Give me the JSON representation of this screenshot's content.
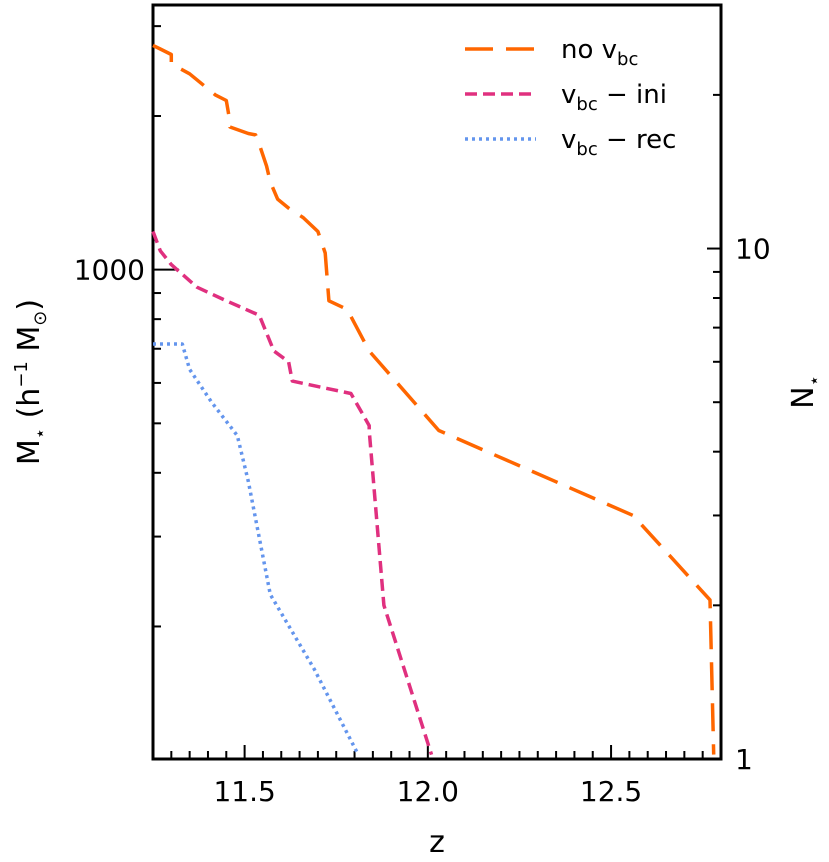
{
  "chart_data": {
    "type": "line",
    "xlabel": "z",
    "ylabel": {
      "base": "M",
      "sub": "⋆",
      "unit_open": " (h",
      "sup": "−1",
      "unit_mid": " M",
      "unit_sub": "⊙",
      "unit_close": ")"
    },
    "ylabel_right": {
      "base": "N",
      "sub": "⋆"
    },
    "xlim": [
      11.25,
      12.8
    ],
    "ylim_right": [
      1,
      30
    ],
    "left_axis_scale_factor": 110,
    "x_ticks": [
      11.5,
      12.0,
      12.5
    ],
    "x_tick_labels": [
      "11.5",
      "12.0",
      "12.5"
    ],
    "left_tick_label": "1000",
    "right_ticks": [
      1,
      10
    ],
    "right_tick_labels": [
      "1",
      "10"
    ],
    "legend": [
      {
        "id": "novbc",
        "parts": [
          "no v",
          "bc",
          ""
        ],
        "color": "#ff6600",
        "dash": "28,13"
      },
      {
        "id": "ini",
        "parts": [
          "v",
          "bc",
          " − ini"
        ],
        "color": "#e0307f",
        "dash": "12,6"
      },
      {
        "id": "rec",
        "parts": [
          "v",
          "bc",
          " − rec"
        ],
        "color": "#6495ed",
        "dash": "3,4"
      }
    ],
    "series": [
      {
        "name": "no v_bc",
        "color": "#ff6600",
        "x": [
          11.25,
          11.27,
          11.3,
          11.3,
          11.35,
          11.42,
          11.45,
          11.46,
          11.46,
          11.51,
          11.53,
          11.54,
          11.56,
          11.57,
          11.59,
          11.62,
          11.66,
          11.7,
          11.72,
          11.73,
          11.78,
          11.84,
          12.03,
          12.56,
          12.77,
          12.78
        ],
        "y": [
          25.0,
          24.6,
          24.0,
          23.0,
          22.0,
          20.0,
          19.5,
          17.7,
          17.3,
          16.8,
          16.7,
          16.0,
          14.5,
          13.5,
          12.5,
          12.0,
          11.5,
          10.8,
          9.8,
          7.9,
          7.6,
          6.3,
          4.4,
          3.0,
          2.05,
          1.02
        ]
      },
      {
        "name": "v_bc − ini",
        "color": "#e0307f",
        "x": [
          11.25,
          11.27,
          11.3,
          11.37,
          11.45,
          11.54,
          11.58,
          11.62,
          11.63,
          11.79,
          11.84,
          11.84,
          11.88,
          12.01
        ],
        "y": [
          10.8,
          9.9,
          9.3,
          8.4,
          7.9,
          7.4,
          6.3,
          6.0,
          5.5,
          5.2,
          4.5,
          4.4,
          2.0,
          1.02
        ]
      },
      {
        "name": "v_bc − rec",
        "color": "#6495ed",
        "x": [
          11.25,
          11.33,
          11.35,
          11.41,
          11.48,
          11.51,
          11.57,
          11.69,
          11.81
        ],
        "y": [
          6.5,
          6.5,
          5.8,
          5.0,
          4.3,
          3.5,
          2.1,
          1.5,
          1.02
        ]
      }
    ]
  }
}
